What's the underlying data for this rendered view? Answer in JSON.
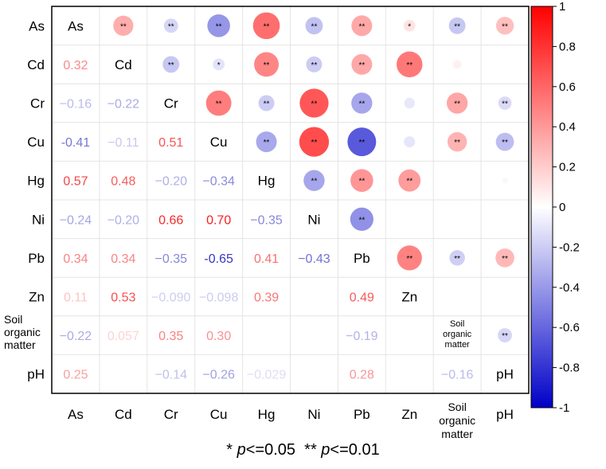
{
  "chart_data": {
    "type": "heatmap",
    "subtype": "correlation-matrix",
    "variables": [
      "As",
      "Cd",
      "Cr",
      "Cu",
      "Hg",
      "Ni",
      "Pb",
      "Zn",
      "Soil organic matter",
      "pH"
    ],
    "diagonal_labels": [
      "As",
      "Cd",
      "Cr",
      "Cu",
      "Hg",
      "Ni",
      "Pb",
      "Zn",
      "Soil organic matter",
      "pH"
    ],
    "row_labels": [
      "As",
      "Cd",
      "Cr",
      "Cu",
      "Hg",
      "Ni",
      "Pb",
      "Zn",
      "Soil organic matter",
      "pH"
    ],
    "col_labels": [
      "As",
      "Cd",
      "Cr",
      "Cu",
      "Hg",
      "Ni",
      "Pb",
      "Zn",
      "Soil organic matter",
      "pH"
    ],
    "lower_triangle_values": [
      {
        "row": "Cd",
        "col": "As",
        "value": 0.32,
        "label": "0.32"
      },
      {
        "row": "Cr",
        "col": "As",
        "value": -0.16,
        "label": "−0.16"
      },
      {
        "row": "Cr",
        "col": "Cd",
        "value": -0.22,
        "label": "−0.22"
      },
      {
        "row": "Cu",
        "col": "As",
        "value": -0.41,
        "label": "-0.41"
      },
      {
        "row": "Cu",
        "col": "Cd",
        "value": -0.11,
        "label": "−0.11"
      },
      {
        "row": "Cu",
        "col": "Cr",
        "value": 0.51,
        "label": "0.51"
      },
      {
        "row": "Hg",
        "col": "As",
        "value": 0.57,
        "label": "0.57"
      },
      {
        "row": "Hg",
        "col": "Cd",
        "value": 0.48,
        "label": "0.48"
      },
      {
        "row": "Hg",
        "col": "Cr",
        "value": -0.2,
        "label": "−0.20"
      },
      {
        "row": "Hg",
        "col": "Cu",
        "value": -0.34,
        "label": "−0.34"
      },
      {
        "row": "Ni",
        "col": "As",
        "value": -0.24,
        "label": "−0.24"
      },
      {
        "row": "Ni",
        "col": "Cd",
        "value": -0.2,
        "label": "−0.20"
      },
      {
        "row": "Ni",
        "col": "Cr",
        "value": 0.66,
        "label": "0.66"
      },
      {
        "row": "Ni",
        "col": "Cu",
        "value": 0.7,
        "label": "0.70"
      },
      {
        "row": "Ni",
        "col": "Hg",
        "value": -0.35,
        "label": "−0.35"
      },
      {
        "row": "Pb",
        "col": "As",
        "value": 0.34,
        "label": "0.34"
      },
      {
        "row": "Pb",
        "col": "Cd",
        "value": 0.34,
        "label": "0.34"
      },
      {
        "row": "Pb",
        "col": "Cr",
        "value": -0.35,
        "label": "−0.35"
      },
      {
        "row": "Pb",
        "col": "Cu",
        "value": -0.65,
        "label": "-0.65"
      },
      {
        "row": "Pb",
        "col": "Hg",
        "value": 0.41,
        "label": "0.41"
      },
      {
        "row": "Pb",
        "col": "Ni",
        "value": -0.43,
        "label": "−0.43"
      },
      {
        "row": "Zn",
        "col": "As",
        "value": 0.11,
        "label": "0.11"
      },
      {
        "row": "Zn",
        "col": "Cd",
        "value": 0.53,
        "label": "0.53"
      },
      {
        "row": "Zn",
        "col": "Cr",
        "value": -0.09,
        "label": "−0.090"
      },
      {
        "row": "Zn",
        "col": "Cu",
        "value": -0.098,
        "label": "−0.098"
      },
      {
        "row": "Zn",
        "col": "Hg",
        "value": 0.39,
        "label": "0.39"
      },
      {
        "row": "Zn",
        "col": "Pb",
        "value": 0.49,
        "label": "0.49"
      },
      {
        "row": "Soil organic matter",
        "col": "As",
        "value": -0.22,
        "label": "−0.22"
      },
      {
        "row": "Soil organic matter",
        "col": "Cd",
        "value": 0.057,
        "label": "0.057"
      },
      {
        "row": "Soil organic matter",
        "col": "Cr",
        "value": 0.35,
        "label": "0.35"
      },
      {
        "row": "Soil organic matter",
        "col": "Cu",
        "value": 0.3,
        "label": "0.30"
      },
      {
        "row": "Soil organic matter",
        "col": "Pb",
        "value": -0.19,
        "label": "−0.19"
      },
      {
        "row": "pH",
        "col": "As",
        "value": 0.25,
        "label": "0.25"
      },
      {
        "row": "pH",
        "col": "Cr",
        "value": -0.14,
        "label": "−0.14"
      },
      {
        "row": "pH",
        "col": "Cu",
        "value": -0.26,
        "label": "−0.26"
      },
      {
        "row": "pH",
        "col": "Hg",
        "value": -0.029,
        "label": "−0.029"
      },
      {
        "row": "pH",
        "col": "Pb",
        "value": 0.28,
        "label": "0.28"
      },
      {
        "row": "pH",
        "col": "Soil organic matter",
        "value": -0.16,
        "label": "−0.16"
      }
    ],
    "upper_triangle_circles": [
      {
        "row": "As",
        "col": "Cd",
        "value": 0.32,
        "sig": "**"
      },
      {
        "row": "As",
        "col": "Cr",
        "value": -0.16,
        "sig": "**"
      },
      {
        "row": "As",
        "col": "Cu",
        "value": -0.41,
        "sig": "**"
      },
      {
        "row": "As",
        "col": "Hg",
        "value": 0.57,
        "sig": "**"
      },
      {
        "row": "As",
        "col": "Ni",
        "value": -0.24,
        "sig": "**"
      },
      {
        "row": "As",
        "col": "Pb",
        "value": 0.34,
        "sig": "**"
      },
      {
        "row": "As",
        "col": "Zn",
        "value": 0.11,
        "sig": "*"
      },
      {
        "row": "As",
        "col": "Soil organic matter",
        "value": -0.22,
        "sig": "**"
      },
      {
        "row": "As",
        "col": "pH",
        "value": 0.25,
        "sig": "**"
      },
      {
        "row": "Cd",
        "col": "Cr",
        "value": -0.22,
        "sig": "**"
      },
      {
        "row": "Cd",
        "col": "Cu",
        "value": -0.11,
        "sig": "*"
      },
      {
        "row": "Cd",
        "col": "Hg",
        "value": 0.48,
        "sig": "**"
      },
      {
        "row": "Cd",
        "col": "Ni",
        "value": -0.2,
        "sig": "**"
      },
      {
        "row": "Cd",
        "col": "Pb",
        "value": 0.34,
        "sig": "**"
      },
      {
        "row": "Cd",
        "col": "Zn",
        "value": 0.53,
        "sig": "**"
      },
      {
        "row": "Cd",
        "col": "Soil organic matter",
        "value": 0.057,
        "sig": ""
      },
      {
        "row": "Cr",
        "col": "Cu",
        "value": 0.51,
        "sig": "**"
      },
      {
        "row": "Cr",
        "col": "Hg",
        "value": -0.2,
        "sig": "**"
      },
      {
        "row": "Cr",
        "col": "Ni",
        "value": 0.66,
        "sig": "**"
      },
      {
        "row": "Cr",
        "col": "Pb",
        "value": -0.35,
        "sig": "**"
      },
      {
        "row": "Cr",
        "col": "Zn",
        "value": -0.09,
        "sig": ""
      },
      {
        "row": "Cr",
        "col": "Soil organic matter",
        "value": 0.35,
        "sig": "**"
      },
      {
        "row": "Cr",
        "col": "pH",
        "value": -0.14,
        "sig": "**"
      },
      {
        "row": "Cu",
        "col": "Hg",
        "value": -0.34,
        "sig": "**"
      },
      {
        "row": "Cu",
        "col": "Ni",
        "value": 0.7,
        "sig": "**"
      },
      {
        "row": "Cu",
        "col": "Pb",
        "value": -0.65,
        "sig": "**"
      },
      {
        "row": "Cu",
        "col": "Zn",
        "value": -0.098,
        "sig": ""
      },
      {
        "row": "Cu",
        "col": "Soil organic matter",
        "value": 0.3,
        "sig": "**"
      },
      {
        "row": "Cu",
        "col": "pH",
        "value": -0.26,
        "sig": "**"
      },
      {
        "row": "Hg",
        "col": "Ni",
        "value": -0.35,
        "sig": "**"
      },
      {
        "row": "Hg",
        "col": "Pb",
        "value": 0.41,
        "sig": "**"
      },
      {
        "row": "Hg",
        "col": "Zn",
        "value": 0.39,
        "sig": "**"
      },
      {
        "row": "Hg",
        "col": "pH",
        "value": -0.029,
        "sig": ""
      },
      {
        "row": "Ni",
        "col": "Pb",
        "value": -0.43,
        "sig": "**"
      },
      {
        "row": "Pb",
        "col": "Zn",
        "value": 0.49,
        "sig": "**"
      },
      {
        "row": "Pb",
        "col": "Soil organic matter",
        "value": -0.19,
        "sig": "**"
      },
      {
        "row": "Pb",
        "col": "pH",
        "value": 0.28,
        "sig": "**"
      },
      {
        "row": "Soil organic matter",
        "col": "pH",
        "value": -0.16,
        "sig": "**"
      }
    ],
    "colorbar": {
      "range": [
        -1,
        1
      ],
      "ticks": [
        1,
        0.8,
        0.6,
        0.4,
        0.2,
        0,
        -0.2,
        -0.4,
        -0.6,
        -0.8,
        -1
      ],
      "tick_labels": [
        "1",
        "0.8",
        "0.6",
        "0.4",
        "0.2",
        "0",
        "-0.2",
        "-0.4",
        "-0.6",
        "-0.8",
        "-1"
      ],
      "negative_color": "#0000c8",
      "zero_color": "#ffffff",
      "positive_color": "#ff0000"
    },
    "grid": true
  },
  "footnote": {
    "sig1_symbol": "* ",
    "sig1_p": "p",
    "sig1_text": "<=0.05",
    "sig2_symbol": "** ",
    "sig2_p": "p",
    "sig2_text": "<=0.01"
  }
}
